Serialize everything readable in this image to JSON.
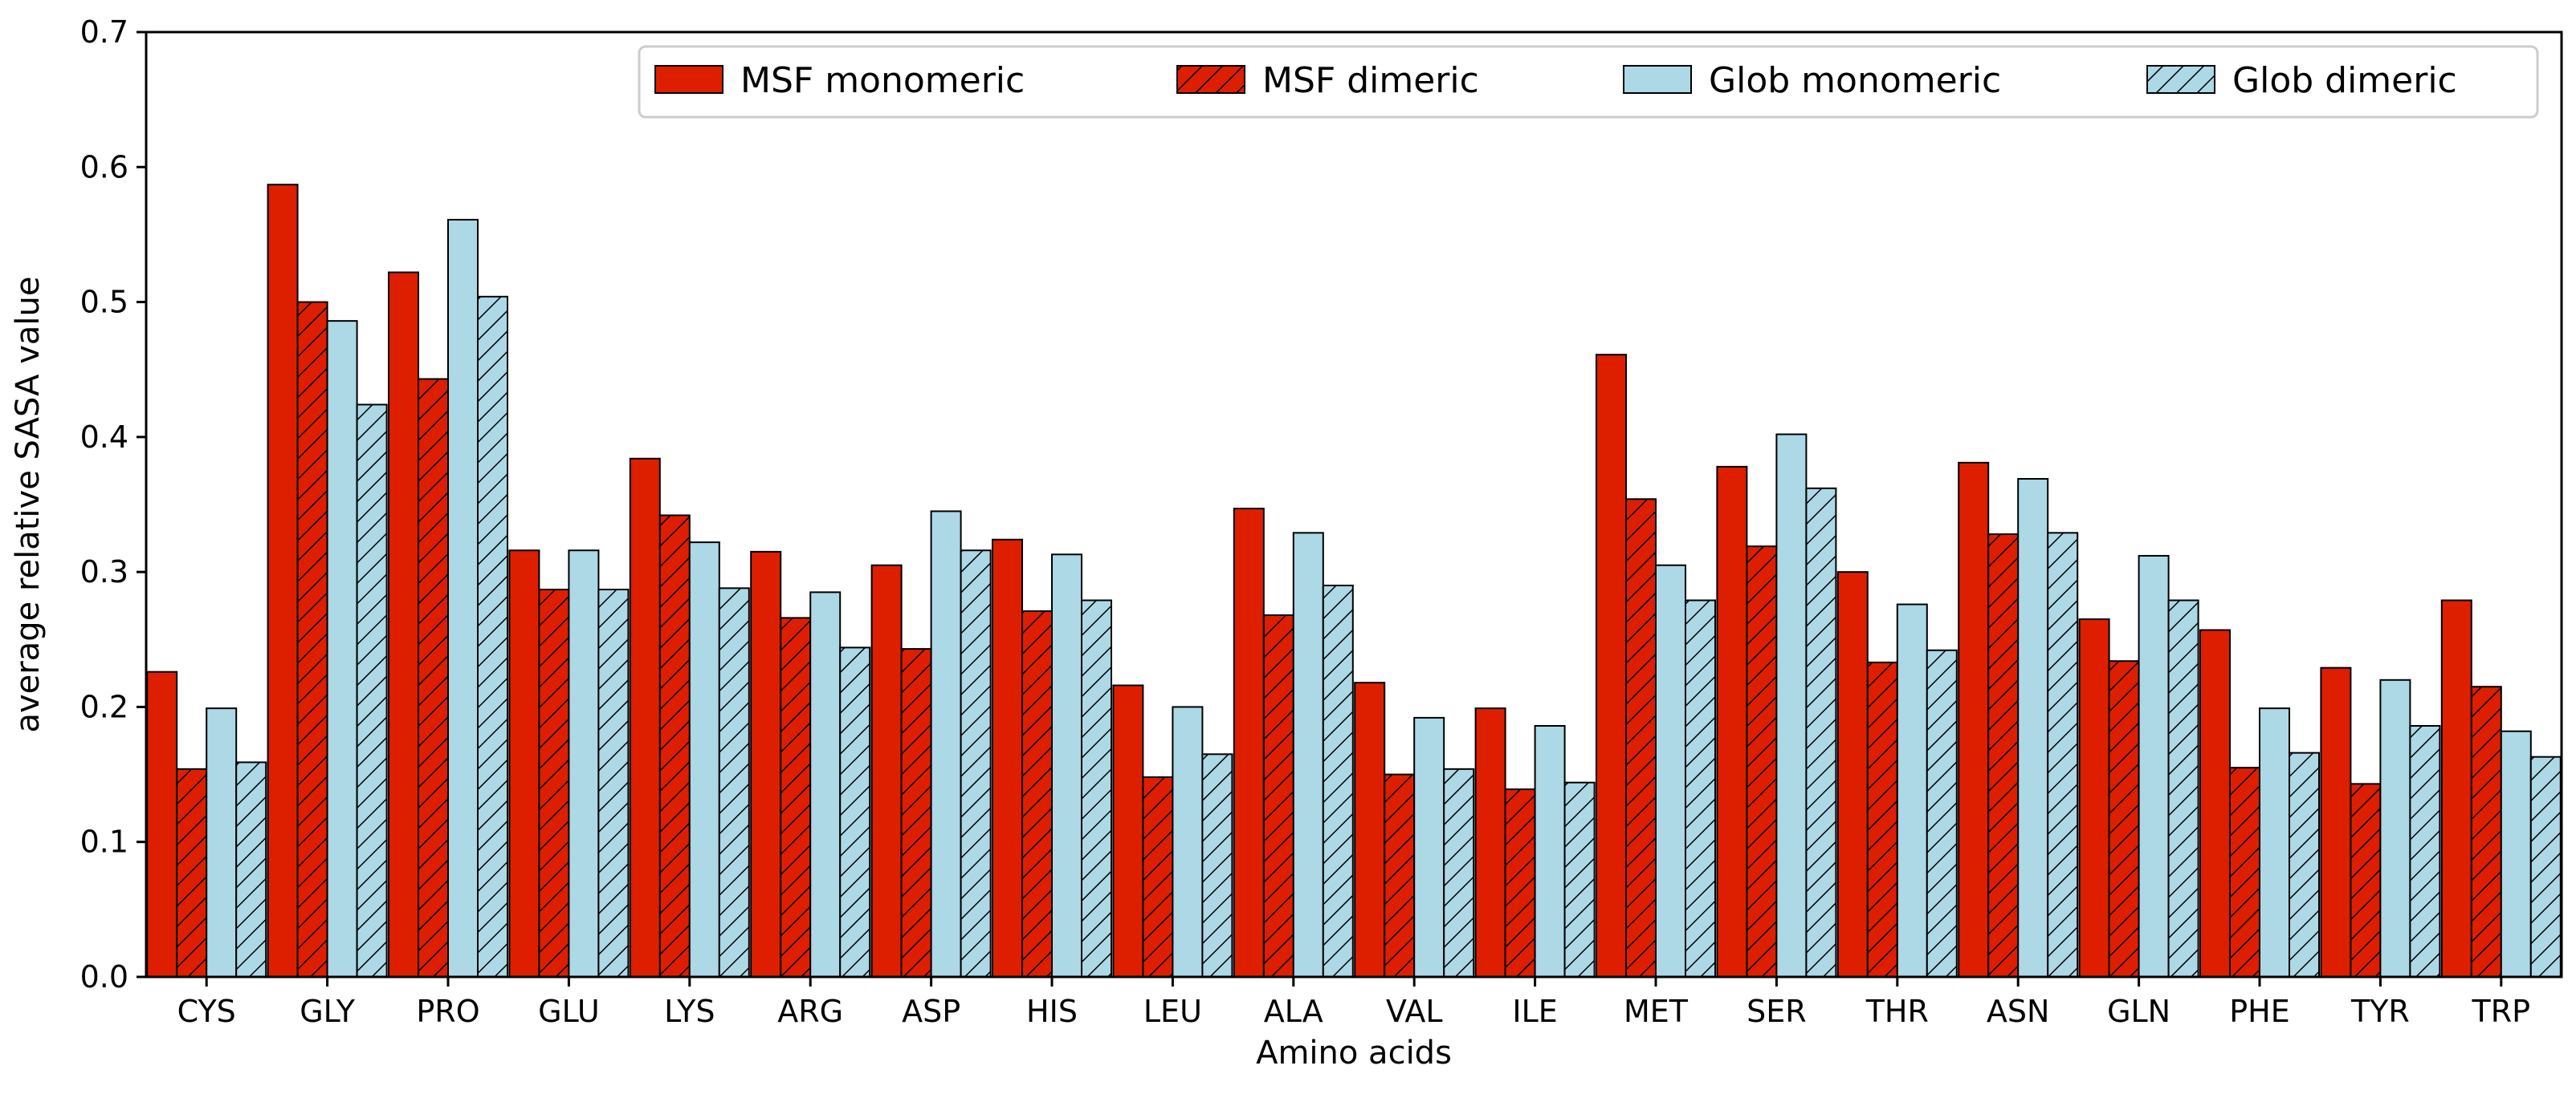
{
  "chart_data": {
    "type": "bar",
    "title": "",
    "xlabel": "Amino acids",
    "ylabel": "average relative SASA value",
    "ylim": [
      0,
      0.7
    ],
    "yticks": [
      "0.0",
      "0.1",
      "0.2",
      "0.3",
      "0.4",
      "0.5",
      "0.6",
      "0.7"
    ],
    "grid": false,
    "legend_position": "top-right",
    "categories": [
      "CYS",
      "GLY",
      "PRO",
      "GLU",
      "LYS",
      "ARG",
      "ASP",
      "HIS",
      "LEU",
      "ALA",
      "VAL",
      "ILE",
      "MET",
      "SER",
      "THR",
      "ASN",
      "GLN",
      "PHE",
      "TYR",
      "TRP"
    ],
    "series": [
      {
        "name": "MSF monomeric",
        "color": "#dd1f00",
        "hatch": false,
        "values": [
          0.226,
          0.587,
          0.522,
          0.316,
          0.384,
          0.315,
          0.305,
          0.324,
          0.216,
          0.347,
          0.218,
          0.199,
          0.461,
          0.378,
          0.3,
          0.381,
          0.265,
          0.257,
          0.229,
          0.279
        ]
      },
      {
        "name": "MSF dimeric",
        "color": "#dd1f00",
        "hatch": true,
        "values": [
          0.154,
          0.5,
          0.443,
          0.287,
          0.342,
          0.266,
          0.243,
          0.271,
          0.148,
          0.268,
          0.15,
          0.139,
          0.354,
          0.319,
          0.233,
          0.328,
          0.234,
          0.155,
          0.143,
          0.215
        ]
      },
      {
        "name": "Glob monomeric",
        "color": "#add8e6",
        "hatch": false,
        "values": [
          0.199,
          0.486,
          0.561,
          0.316,
          0.322,
          0.285,
          0.345,
          0.313,
          0.2,
          0.329,
          0.192,
          0.186,
          0.305,
          0.402,
          0.276,
          0.369,
          0.312,
          0.199,
          0.22,
          0.182
        ]
      },
      {
        "name": "Glob dimeric",
        "color": "#add8e6",
        "hatch": true,
        "values": [
          0.159,
          0.424,
          0.504,
          0.287,
          0.288,
          0.244,
          0.316,
          0.279,
          0.165,
          0.29,
          0.154,
          0.144,
          0.279,
          0.362,
          0.242,
          0.329,
          0.279,
          0.166,
          0.186,
          0.163
        ]
      }
    ]
  }
}
